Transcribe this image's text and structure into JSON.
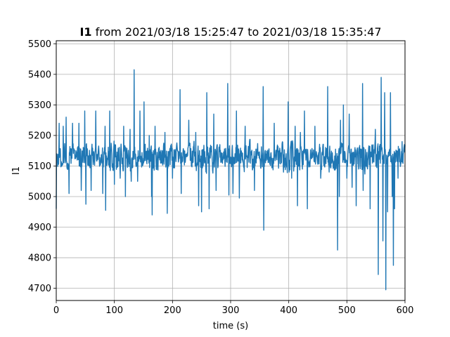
{
  "chart_data": {
    "type": "line",
    "title_bold": "I1",
    "title_rest": " from 2021/03/18 15:25:47 to 2021/03/18 15:35:47",
    "xlabel": "time (s)",
    "ylabel": "I1",
    "xlim": [
      0,
      600
    ],
    "ylim": [
      4660,
      5510
    ],
    "xticks": [
      0,
      100,
      200,
      300,
      400,
      500,
      600
    ],
    "yticks": [
      4700,
      4800,
      4900,
      5000,
      5100,
      5200,
      5300,
      5400,
      5500
    ],
    "grid": true,
    "line_color": "#1f77b4",
    "series": [
      {
        "baseline": 5130,
        "noise_amplitude": 55,
        "sample_count": 1200,
        "spikes": [
          [
            0,
            4960
          ],
          [
            5,
            5240
          ],
          [
            12,
            5230
          ],
          [
            17,
            5260
          ],
          [
            22,
            5010
          ],
          [
            28,
            5240
          ],
          [
            39,
            5240
          ],
          [
            43,
            5020
          ],
          [
            49,
            5280
          ],
          [
            51,
            4975
          ],
          [
            60,
            5020
          ],
          [
            68,
            5280
          ],
          [
            80,
            5010
          ],
          [
            84,
            5230
          ],
          [
            85,
            4955
          ],
          [
            92,
            5280
          ],
          [
            100,
            5040
          ],
          [
            110,
            5060
          ],
          [
            116,
            5230
          ],
          [
            119,
            5000
          ],
          [
            127,
            5220
          ],
          [
            129,
            5050
          ],
          [
            134,
            5415
          ],
          [
            140,
            5050
          ],
          [
            144,
            5280
          ],
          [
            151,
            5310
          ],
          [
            160,
            5200
          ],
          [
            164,
            5000
          ],
          [
            165,
            4940
          ],
          [
            170,
            5230
          ],
          [
            187,
            5210
          ],
          [
            191,
            4945
          ],
          [
            200,
            5060
          ],
          [
            213,
            5350
          ],
          [
            215,
            5010
          ],
          [
            228,
            5250
          ],
          [
            240,
            5210
          ],
          [
            245,
            4970
          ],
          [
            250,
            4950
          ],
          [
            259,
            5340
          ],
          [
            263,
            4960
          ],
          [
            271,
            5270
          ],
          [
            275,
            5020
          ],
          [
            295,
            5370
          ],
          [
            297,
            5005
          ],
          [
            304,
            5010
          ],
          [
            310,
            5280
          ],
          [
            315,
            4995
          ],
          [
            325,
            5230
          ],
          [
            341,
            5020
          ],
          [
            356,
            5360
          ],
          [
            357,
            4890
          ],
          [
            375,
            5240
          ],
          [
            391,
            5080
          ],
          [
            399,
            5310
          ],
          [
            405,
            5060
          ],
          [
            411,
            5230
          ],
          [
            415,
            4970
          ],
          [
            420,
            5210
          ],
          [
            427,
            5280
          ],
          [
            432,
            4960
          ],
          [
            445,
            5230
          ],
          [
            455,
            5060
          ],
          [
            467,
            5360
          ],
          [
            484,
            4825
          ],
          [
            487,
            5000
          ],
          [
            489,
            5250
          ],
          [
            494,
            5300
          ],
          [
            500,
            5060
          ],
          [
            504,
            5270
          ],
          [
            509,
            5030
          ],
          [
            516,
            4970
          ],
          [
            520,
            5090
          ],
          [
            527,
            5370
          ],
          [
            528,
            5020
          ],
          [
            533,
            5100
          ],
          [
            540,
            4960
          ],
          [
            549,
            5220
          ],
          [
            554,
            4745
          ],
          [
            559,
            5390
          ],
          [
            562,
            4855
          ],
          [
            565,
            5340
          ],
          [
            567,
            4695
          ],
          [
            570,
            4950
          ],
          [
            575,
            5340
          ],
          [
            578,
            5000
          ],
          [
            580,
            4775
          ],
          [
            582,
            4960
          ],
          [
            588,
            5060
          ],
          [
            595,
            5180
          ]
        ]
      }
    ]
  }
}
